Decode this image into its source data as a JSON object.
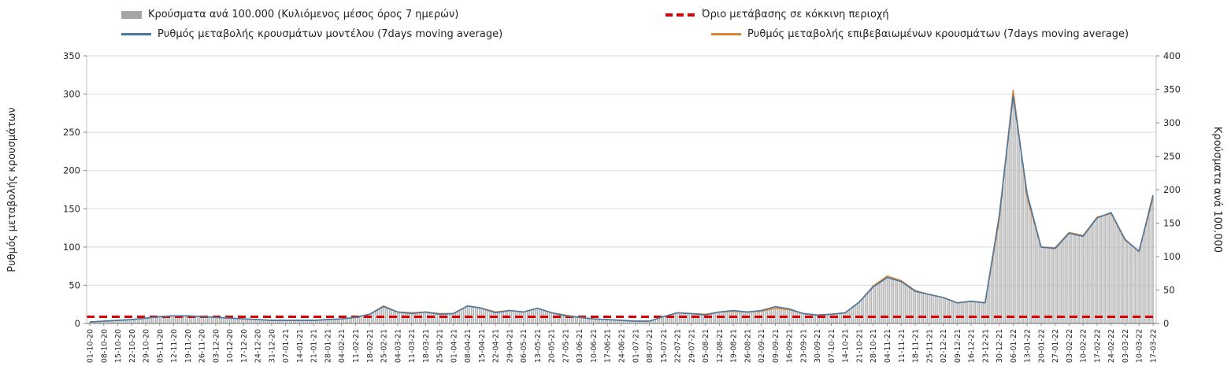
{
  "legend": {
    "bars": "Κρούσματα ανά 100.000 (Κυλιόμενος μέσος όρος 7 ημερών)",
    "threshold": "Όριο μετάβασης σε κόκκινη περιοχή",
    "model": "Ρυθμός μεταβολής κρουσμάτων μοντέλου (7days moving average)",
    "confirmed": "Ρυθμός μεταβολής επιβεβαιωμένων κρουσμάτων (7days moving average)"
  },
  "axes": {
    "left_label": "Ρυθμός μεταβολής κρουσμάτων",
    "right_label": "Κρούσματα ανά 100.000",
    "left_ticks": [
      0,
      50,
      100,
      150,
      200,
      250,
      300,
      350
    ],
    "right_ticks": [
      0,
      50,
      100,
      150,
      200,
      250,
      300,
      350,
      400
    ]
  },
  "colors": {
    "bar": "#b3b3b3",
    "bar_legend": "#a6a6a6",
    "model_line": "#4878a3",
    "confirmed_line": "#dd8433",
    "threshold": "#dd0000",
    "grid": "#d9d9d9",
    "spine": "#bfbfbf",
    "baseline": "#808080",
    "text": "#262626"
  },
  "chart_data": {
    "type": "combo (daily bars + two lines + dashed threshold)",
    "title": "",
    "xlabel": "",
    "left_ylabel": "Ρυθμός μεταβολής κρουσμάτων",
    "right_ylabel": "Κρούσματα ανά 100.000",
    "left_ylim": [
      0,
      350
    ],
    "right_ylim": [
      0,
      400
    ],
    "grid": true,
    "legend_position": "top",
    "categories": [
      "01-10-20",
      "08-10-20",
      "15-10-20",
      "22-10-20",
      "29-10-20",
      "05-11-20",
      "12-11-20",
      "19-11-20",
      "26-11-20",
      "03-12-20",
      "10-12-20",
      "17-12-20",
      "24-12-20",
      "31-12-20",
      "07-01-21",
      "14-01-21",
      "21-01-21",
      "28-01-21",
      "04-02-21",
      "11-02-21",
      "18-02-21",
      "25-02-21",
      "04-03-21",
      "11-03-21",
      "18-03-21",
      "25-03-21",
      "01-04-21",
      "08-04-21",
      "15-04-21",
      "22-04-21",
      "29-04-21",
      "06-05-21",
      "13-05-21",
      "20-05-21",
      "27-05-21",
      "03-06-21",
      "10-06-21",
      "17-06-21",
      "24-06-21",
      "01-07-21",
      "08-07-21",
      "15-07-21",
      "22-07-21",
      "29-07-21",
      "05-08-21",
      "12-08-21",
      "19-08-21",
      "26-08-21",
      "02-09-21",
      "09-09-21",
      "16-09-21",
      "23-09-21",
      "30-09-21",
      "07-10-21",
      "14-10-21",
      "21-10-21",
      "28-10-21",
      "04-11-21",
      "11-11-21",
      "18-11-21",
      "25-11-21",
      "02-12-21",
      "09-12-21",
      "16-12-21",
      "23-12-21",
      "30-12-21",
      "06-01-22",
      "13-01-22",
      "20-01-22",
      "27-01-22",
      "03-02-22",
      "10-02-22",
      "17-02-22",
      "24-02-22",
      "03-03-22",
      "10-03-22",
      "17-03-22"
    ],
    "series": [
      {
        "name": "Κρούσματα ανά 100.000 (Κυλιόμενος μέσος όρος 7 ημερών)",
        "type": "bar",
        "axis": "right",
        "values": [
          2,
          3,
          4,
          6,
          8,
          10,
          12,
          12,
          10,
          9,
          8,
          7,
          6,
          5,
          5,
          5,
          5,
          6,
          7,
          9,
          14,
          26,
          17,
          15,
          17,
          14,
          15,
          27,
          23,
          16,
          19,
          17,
          23,
          16,
          12,
          9,
          7,
          5,
          4,
          3,
          4,
          11,
          16,
          15,
          13,
          17,
          19,
          17,
          19,
          24,
          21,
          15,
          13,
          14,
          16,
          32,
          55,
          70,
          63,
          48,
          44,
          39,
          31,
          33,
          31,
          160,
          348,
          195,
          115,
          112,
          135,
          130,
          158,
          165,
          125,
          107,
          190
        ]
      },
      {
        "name": "Όριο μετάβασης σε κόκκινη περιοχή",
        "type": "threshold",
        "axis": "right",
        "value": 10
      },
      {
        "name": "Ρυθμός μεταβολής κρουσμάτων μοντέλου (7days moving average)",
        "type": "line",
        "axis": "left",
        "values": [
          2,
          3,
          4,
          5,
          7,
          9,
          10,
          10,
          9,
          8,
          7,
          6,
          5,
          4,
          4,
          4,
          4,
          5,
          6,
          8,
          12,
          22,
          15,
          13,
          15,
          12,
          13,
          23,
          20,
          14,
          17,
          15,
          20,
          14,
          10,
          8,
          6,
          5,
          4,
          3,
          3,
          9,
          14,
          13,
          11,
          15,
          17,
          15,
          17,
          22,
          19,
          13,
          11,
          12,
          14,
          28,
          48,
          60,
          55,
          42,
          38,
          34,
          27,
          29,
          27,
          140,
          298,
          170,
          100,
          98,
          118,
          114,
          138,
          145,
          110,
          94,
          168
        ]
      },
      {
        "name": "Ρυθμός μεταβολής επιβεβαιωμένων κρουσμάτων (7days moving average)",
        "type": "line",
        "axis": "left",
        "values": [
          2,
          3,
          4,
          5,
          7,
          9,
          10,
          10,
          9,
          8,
          7,
          6,
          5,
          4,
          4,
          4,
          4,
          5,
          6,
          8,
          12,
          23,
          15,
          14,
          15,
          13,
          13,
          23,
          20,
          15,
          17,
          15,
          20,
          14,
          11,
          8,
          6,
          5,
          4,
          3,
          3,
          9,
          14,
          13,
          12,
          15,
          16,
          15,
          16,
          20,
          18,
          13,
          11,
          12,
          14,
          28,
          49,
          62,
          56,
          43,
          38,
          34,
          27,
          29,
          27,
          135,
          305,
          165,
          100,
          99,
          119,
          115,
          139,
          144,
          109,
          95,
          164
        ]
      }
    ]
  }
}
